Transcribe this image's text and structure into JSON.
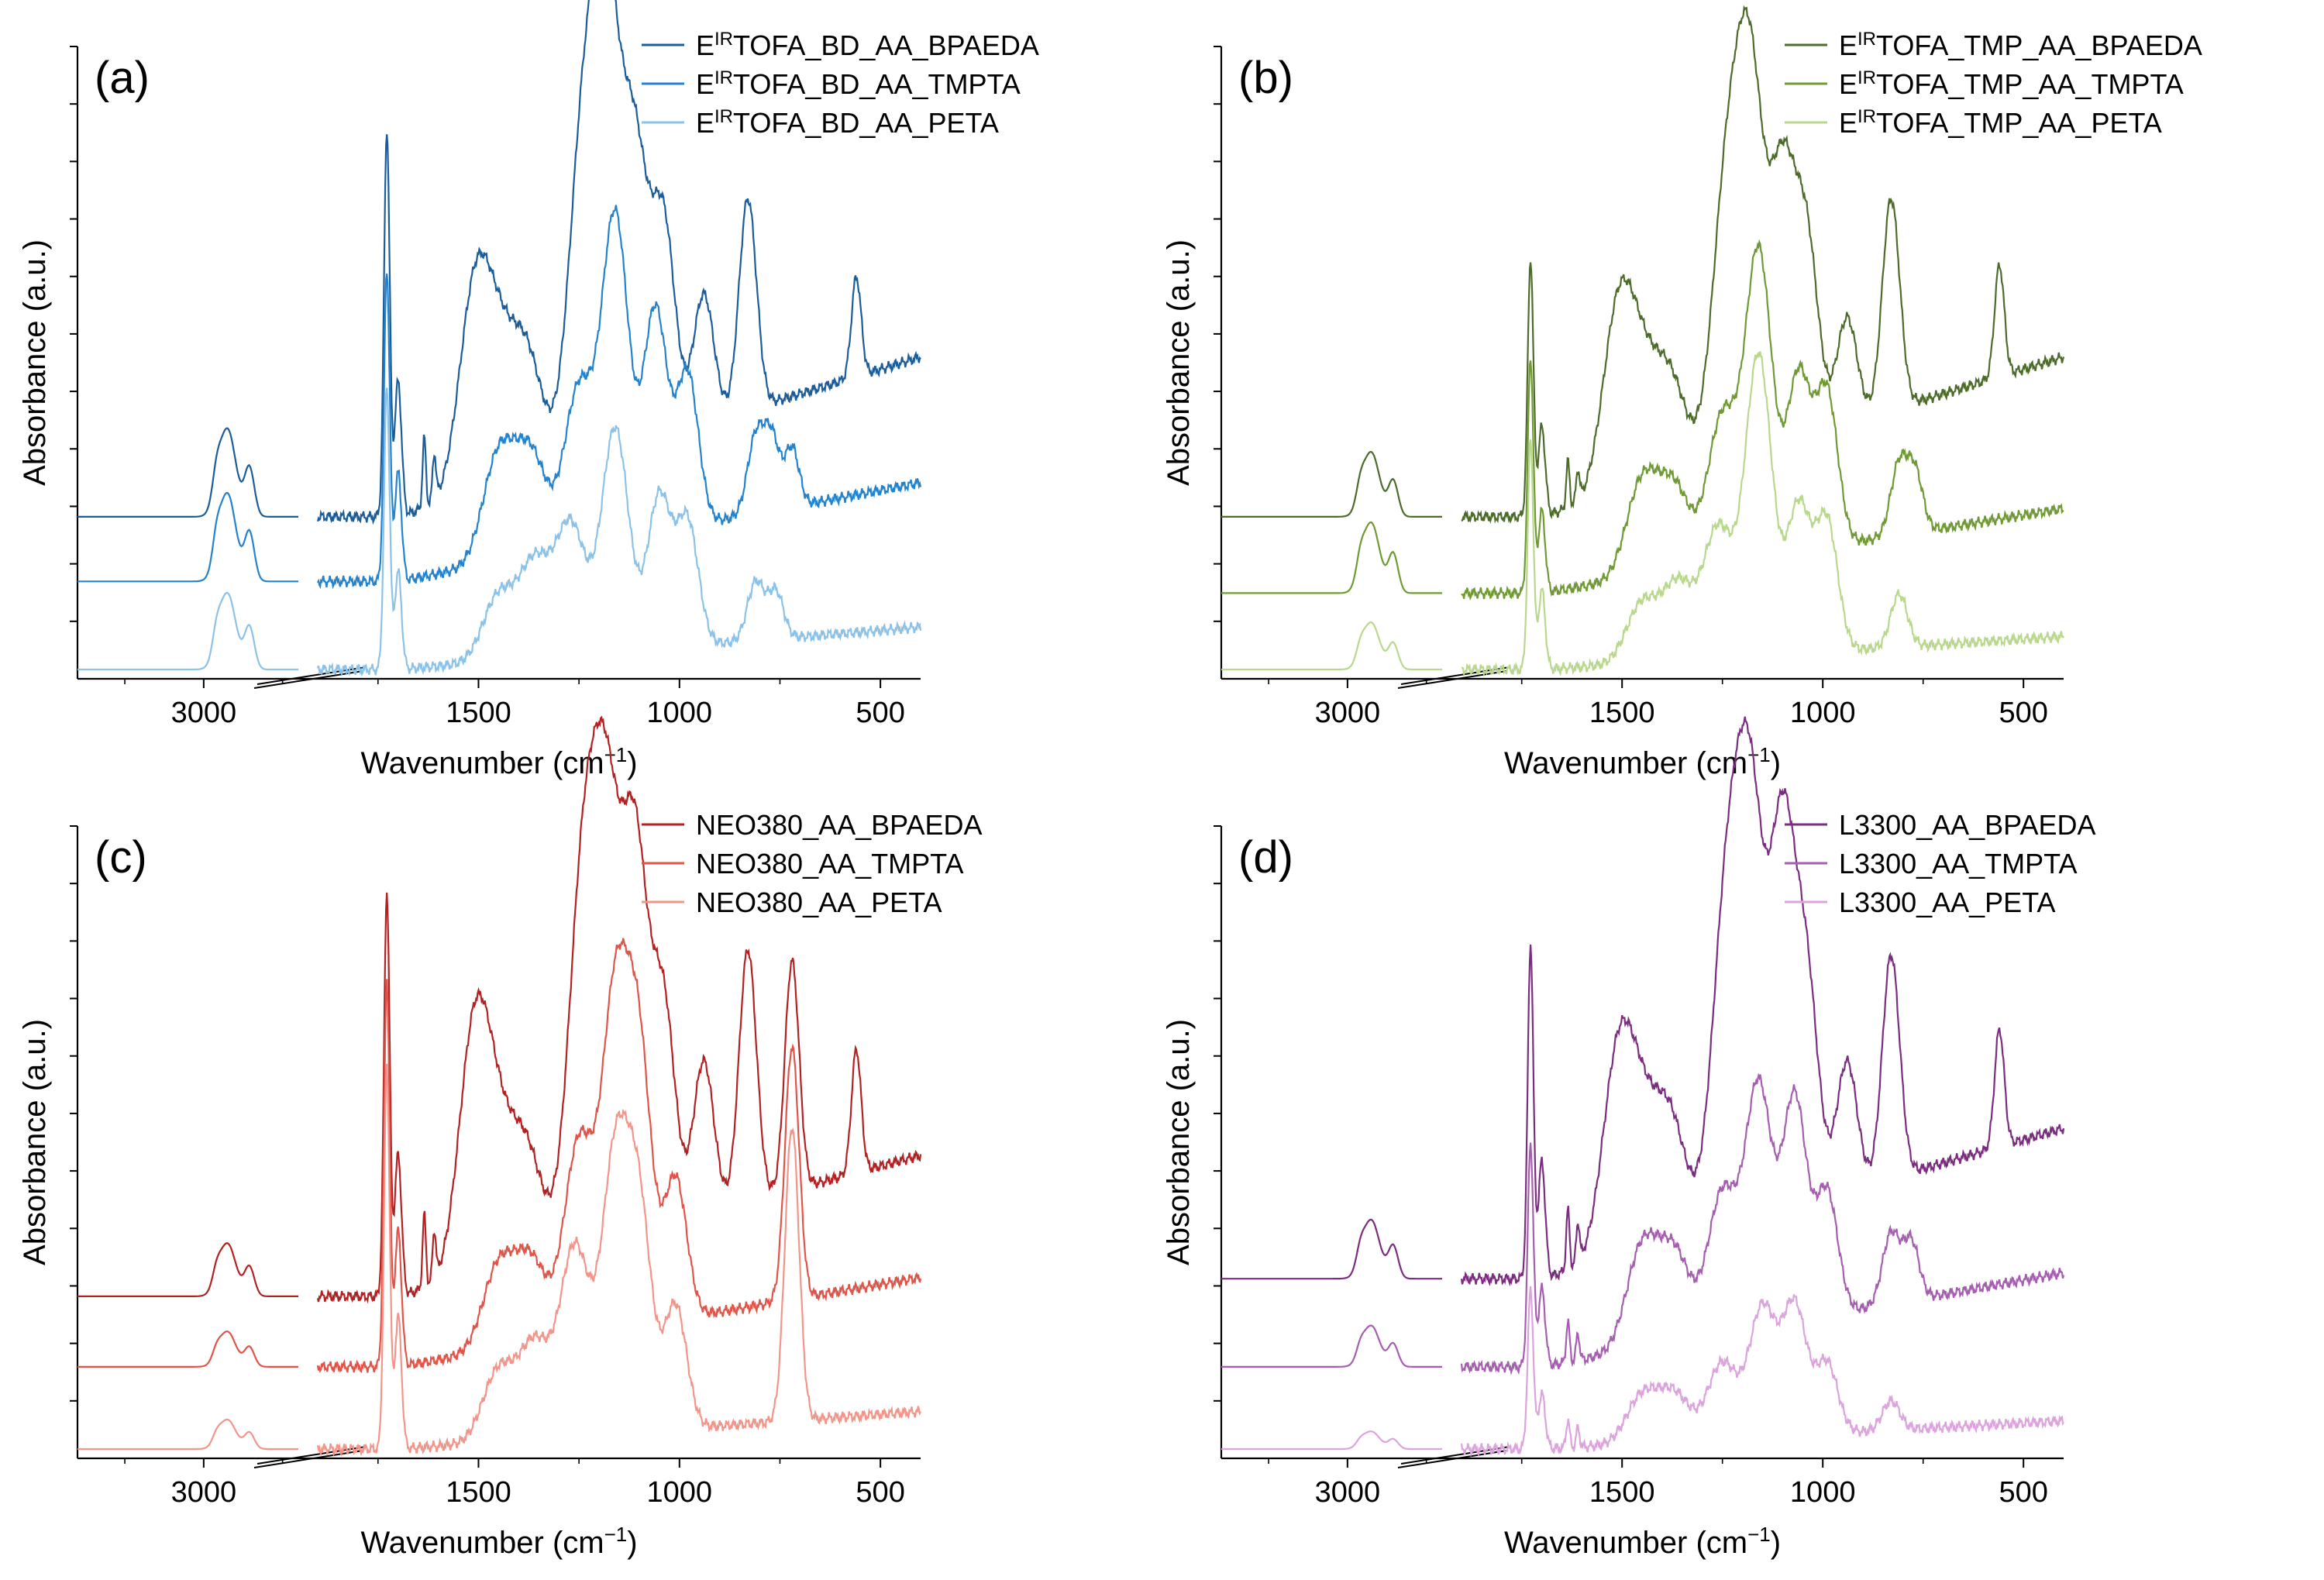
{
  "figure": {
    "description": "FTIR absorbance spectra, four panels"
  },
  "chart_data": [
    {
      "type": "line",
      "panel_label": "(a)",
      "xlabel_main": "Wavenumber (cm",
      "xlabel_sup": "−1",
      "xlabel_tail": ")",
      "ylabel": "Absorbance (a.u.)",
      "x_ticks": [
        "3000",
        "1500",
        "1000",
        "500"
      ],
      "x_axis_break": "between 2700 and 1900 cm-1",
      "legend_position": "top-right",
      "series": [
        {
          "name_pre": "E",
          "name_sup": "IR",
          "name_post": "TOFA_BD_AA_BPAEDA",
          "color": "#1c5d99",
          "baseline": 0.26,
          "peak_ch": 0.15,
          "peak_co": 0.66,
          "peaks": [
            [
              1510,
              0.33
            ],
            [
              1450,
              0.19
            ],
            [
              1380,
              0.2
            ],
            [
              1240,
              0.53
            ],
            [
              1180,
              0.7
            ],
            [
              1110,
              0.47
            ],
            [
              1040,
              0.36
            ],
            [
              940,
              0.22
            ],
            [
              830,
              0.36
            ],
            [
              560,
              0.17
            ]
          ],
          "tail_end": 0.34
        },
        {
          "name_pre": "E",
          "name_sup": "IR",
          "name_post": "TOFA_BD_AA_TMPTA",
          "color": "#2483cc",
          "baseline": 0.15,
          "peak_ch": 0.15,
          "peak_co": 0.53,
          "peaks": [
            [
              1450,
              0.18
            ],
            [
              1370,
              0.17
            ],
            [
              1250,
              0.27
            ],
            [
              1160,
              0.55
            ],
            [
              1060,
              0.38
            ],
            [
              980,
              0.26
            ],
            [
              810,
              0.13
            ],
            [
              770,
              0.12
            ],
            [
              720,
              0.1
            ]
          ],
          "tail_end": 0.21
        },
        {
          "name_pre": "E",
          "name_sup": "IR",
          "name_post": "TOFA_BD_AA_PETA",
          "color": "#8dc2e8",
          "baseline": 0.0,
          "peak_ch": 0.13,
          "peak_co": 0.48,
          "peaks": [
            [
              1450,
              0.11
            ],
            [
              1360,
              0.16
            ],
            [
              1270,
              0.22
            ],
            [
              1160,
              0.38
            ],
            [
              1050,
              0.26
            ],
            [
              980,
              0.21
            ],
            [
              810,
              0.1
            ],
            [
              760,
              0.08
            ]
          ],
          "tail_end": 0.09
        }
      ]
    },
    {
      "type": "line",
      "panel_label": "(b)",
      "xlabel_main": "Wavenumber (cm",
      "xlabel_sup": "−1",
      "xlabel_tail": ")",
      "ylabel": "Absorbance (a.u.)",
      "x_ticks": [
        "3000",
        "1500",
        "1000",
        "500"
      ],
      "x_axis_break": "between 2700 and 1900 cm-1",
      "legend_position": "top-right",
      "series": [
        {
          "name_pre": "E",
          "name_sup": "IR",
          "name_post": "TOFA_TMP_AA_BPAEDA",
          "color": "#4d6b2a",
          "baseline": 0.26,
          "peak_ch": 0.11,
          "peak_co": 0.44,
          "peaks": [
            [
              1510,
              0.3
            ],
            [
              1450,
              0.16
            ],
            [
              1380,
              0.16
            ],
            [
              1240,
              0.45
            ],
            [
              1180,
              0.6
            ],
            [
              1100,
              0.44
            ],
            [
              1040,
              0.32
            ],
            [
              940,
              0.18
            ],
            [
              830,
              0.36
            ],
            [
              560,
              0.19
            ]
          ],
          "tail_end": 0.34
        },
        {
          "name_pre": "E",
          "name_sup": "IR",
          "name_post": "TOFA_TMP_AA_TMPTA",
          "color": "#6f9a34",
          "baseline": 0.13,
          "peak_ch": 0.12,
          "peak_co": 0.4,
          "peaks": [
            [
              1450,
              0.16
            ],
            [
              1370,
              0.14
            ],
            [
              1250,
              0.25
            ],
            [
              1160,
              0.52
            ],
            [
              1060,
              0.3
            ],
            [
              990,
              0.26
            ],
            [
              810,
              0.12
            ],
            [
              770,
              0.1
            ]
          ],
          "tail_end": 0.18
        },
        {
          "name_pre": "E",
          "name_sup": "IR",
          "name_post": "TOFA_TMP_AA_PETA",
          "color": "#b9d88e",
          "baseline": 0.0,
          "peak_ch": 0.08,
          "peak_co": 0.39,
          "peaks": [
            [
              1450,
              0.1
            ],
            [
              1360,
              0.13
            ],
            [
              1260,
              0.22
            ],
            [
              1160,
              0.51
            ],
            [
              1060,
              0.25
            ],
            [
              990,
              0.22
            ],
            [
              810,
              0.09
            ]
          ],
          "tail_end": 0.07
        }
      ]
    },
    {
      "type": "line",
      "panel_label": "(c)",
      "xlabel_main": "Wavenumber (cm",
      "xlabel_sup": "−1",
      "xlabel_tail": ")",
      "ylabel": "Absorbance (a.u.)",
      "x_ticks": [
        "3000",
        "1500",
        "1000",
        "500"
      ],
      "x_axis_break": "between 2700 and 1900 cm-1",
      "legend_position": "top-right",
      "series": [
        {
          "name_pre": "",
          "name_sup": "",
          "name_post": "NEO380_AA_BPAEDA",
          "color": "#b22222",
          "baseline": 0.26,
          "peak_ch": 0.09,
          "peak_co": 0.69,
          "peaks": [
            [
              1510,
              0.41
            ],
            [
              1450,
              0.18
            ],
            [
              1380,
              0.18
            ],
            [
              1240,
              0.61
            ],
            [
              1180,
              0.65
            ],
            [
              1110,
              0.63
            ],
            [
              1040,
              0.37
            ],
            [
              940,
              0.26
            ],
            [
              830,
              0.43
            ],
            [
              720,
              0.39
            ],
            [
              560,
              0.21
            ]
          ],
          "tail_end": 0.3
        },
        {
          "name_pre": "",
          "name_sup": "",
          "name_post": "NEO380_AA_TMPTA",
          "color": "#e0554a",
          "baseline": 0.14,
          "peak_ch": 0.06,
          "peak_co": 0.66,
          "peaks": [
            [
              1450,
              0.14
            ],
            [
              1370,
              0.14
            ],
            [
              1250,
              0.33
            ],
            [
              1160,
              0.55
            ],
            [
              1100,
              0.44
            ],
            [
              1010,
              0.24
            ],
            [
              720,
              0.43
            ]
          ],
          "tail_end": 0.19
        },
        {
          "name_pre": "",
          "name_sup": "",
          "name_post": "NEO380_AA_PETA",
          "color": "#f2958a",
          "baseline": 0.0,
          "peak_ch": 0.05,
          "peak_co": 0.65,
          "peaks": [
            [
              1450,
              0.12
            ],
            [
              1360,
              0.16
            ],
            [
              1260,
              0.32
            ],
            [
              1160,
              0.46
            ],
            [
              1100,
              0.36
            ],
            [
              1010,
              0.21
            ],
            [
              720,
              0.5
            ]
          ],
          "tail_end": 0.08
        }
      ]
    },
    {
      "type": "line",
      "panel_label": "(d)",
      "xlabel_main": "Wavenumber (cm",
      "xlabel_sup": "−1",
      "xlabel_tail": ")",
      "ylabel": "Absorbance (a.u.)",
      "x_ticks": [
        "3000",
        "1500",
        "1000",
        "500"
      ],
      "x_axis_break": "between 2700 and 1900 cm-1",
      "legend_position": "top-right",
      "series": [
        {
          "name_pre": "",
          "name_sup": "",
          "name_post": "L3300_AA_BPAEDA",
          "color": "#7b2d7f",
          "baseline": 0.29,
          "peak_ch": 0.1,
          "peak_co": 0.57,
          "peaks": [
            [
              1510,
              0.33
            ],
            [
              1450,
              0.18
            ],
            [
              1380,
              0.2
            ],
            [
              1240,
              0.53
            ],
            [
              1180,
              0.66
            ],
            [
              1100,
              0.63
            ],
            [
              1040,
              0.36
            ],
            [
              940,
              0.22
            ],
            [
              830,
              0.38
            ],
            [
              560,
              0.2
            ]
          ],
          "tail_end": 0.32
        },
        {
          "name_pre": "",
          "name_sup": "",
          "name_post": "L3300_AA_TMPTA",
          "color": "#a65fb0",
          "baseline": 0.14,
          "peak_ch": 0.07,
          "peak_co": 0.38,
          "peaks": [
            [
              1450,
              0.17
            ],
            [
              1370,
              0.15
            ],
            [
              1250,
              0.24
            ],
            [
              1160,
              0.41
            ],
            [
              1070,
              0.38
            ],
            [
              990,
              0.21
            ],
            [
              830,
              0.12
            ],
            [
              780,
              0.1
            ]
          ],
          "tail_end": 0.2
        },
        {
          "name_pre": "",
          "name_sup": "",
          "name_post": "L3300_AA_PETA",
          "color": "#dba4dd",
          "baseline": 0.0,
          "peak_ch": 0.03,
          "peak_co": 0.27,
          "peaks": [
            [
              1450,
              0.08
            ],
            [
              1370,
              0.08
            ],
            [
              1250,
              0.13
            ],
            [
              1150,
              0.22
            ],
            [
              1070,
              0.22
            ],
            [
              990,
              0.12
            ],
            [
              830,
              0.05
            ]
          ],
          "tail_end": 0.06
        }
      ]
    }
  ]
}
